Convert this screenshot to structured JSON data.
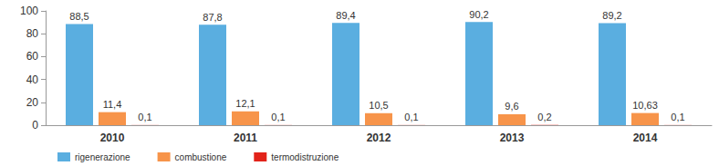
{
  "chart_data": {
    "type": "bar",
    "categories": [
      "2010",
      "2011",
      "2012",
      "2013",
      "2014"
    ],
    "series": [
      {
        "name": "rigenerazione",
        "color": "#5aaee0",
        "values": [
          88.5,
          87.8,
          89.4,
          90.2,
          89.2
        ],
        "value_labels": [
          "88,5",
          "87,8",
          "89,4",
          "90,2",
          "89,2"
        ]
      },
      {
        "name": "combustione",
        "color": "#f7944a",
        "values": [
          11.4,
          12.1,
          10.5,
          9.6,
          10.63
        ],
        "value_labels": [
          "11,4",
          "12,1",
          "10,5",
          "9,6",
          "10,63"
        ]
      },
      {
        "name": "termodistruzione",
        "color": "#e2231a",
        "values": [
          0.1,
          0.1,
          0.1,
          0.2,
          0.1
        ],
        "value_labels": [
          "0,1",
          "0,1",
          "0,1",
          "0,2",
          "0,1"
        ]
      }
    ],
    "ylim": [
      0,
      100
    ],
    "yticks": [
      0,
      20,
      40,
      60,
      80,
      100
    ],
    "grid": false,
    "legend": "bottom",
    "data_labels": true
  }
}
